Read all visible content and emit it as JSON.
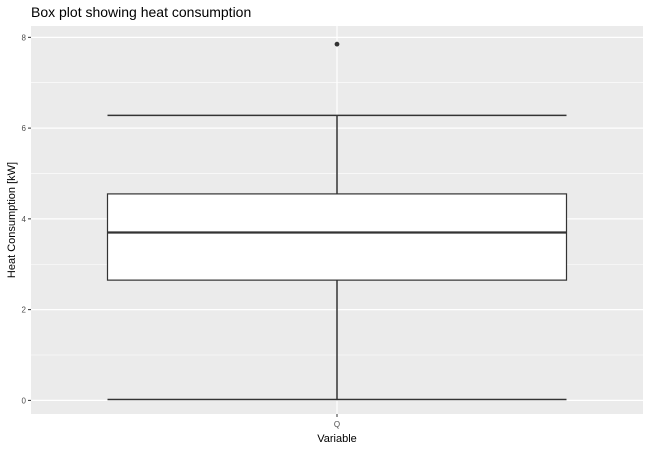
{
  "chart_data": {
    "type": "boxplot",
    "title": "Box plot showing heat consumption",
    "xlabel": "Variable",
    "ylabel": "Heat Consumption [kW]",
    "categories": [
      "Q"
    ],
    "ylim": [
      -0.3,
      8.25
    ],
    "y_ticks": [
      0,
      2,
      4,
      6,
      8
    ],
    "grid": true,
    "series": [
      {
        "category": "Q",
        "min": 0.02,
        "q1": 2.65,
        "median": 3.7,
        "q3": 4.55,
        "max": 6.28,
        "outliers": [
          7.85
        ]
      }
    ],
    "colors": {
      "panel_background": "#ebebeb",
      "grid": "#ffffff",
      "box_fill": "#ffffff",
      "box_stroke": "#333333",
      "text": "#4d4d4d"
    }
  }
}
